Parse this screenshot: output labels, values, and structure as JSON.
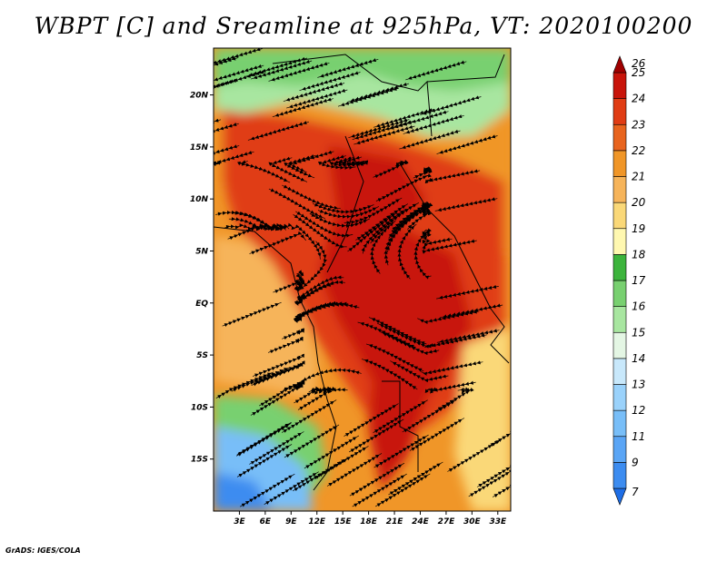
{
  "title": "WBPT [C] and Sreamline at 925hPa, VT: 2020100200",
  "credit": "GrADS: IGES/COLA",
  "lat_ticks": [
    {
      "label": "20N",
      "value": 20
    },
    {
      "label": "15N",
      "value": 15
    },
    {
      "label": "10N",
      "value": 10
    },
    {
      "label": "5N",
      "value": 5
    },
    {
      "label": "EQ",
      "value": 0
    },
    {
      "label": "5S",
      "value": -5
    },
    {
      "label": "10S",
      "value": -10
    },
    {
      "label": "15S",
      "value": -15
    }
  ],
  "lon_ticks": [
    {
      "label": "3E",
      "value": 3
    },
    {
      "label": "6E",
      "value": 6
    },
    {
      "label": "9E",
      "value": 9
    },
    {
      "label": "12E",
      "value": 12
    },
    {
      "label": "15E",
      "value": 15
    },
    {
      "label": "18E",
      "value": 18
    },
    {
      "label": "21E",
      "value": 21
    },
    {
      "label": "24E",
      "value": 24
    },
    {
      "label": "27E",
      "value": 27
    },
    {
      "label": "30E",
      "value": 30
    },
    {
      "label": "33E",
      "value": 33
    }
  ],
  "domain": {
    "lon_min": 0,
    "lon_max": 34.5,
    "lat_min": -20,
    "lat_max": 24.5
  },
  "colorbar": {
    "levels": [
      "7",
      "9",
      "11",
      "12",
      "13",
      "14",
      "15",
      "16",
      "17",
      "18",
      "19",
      "20",
      "21",
      "22",
      "23",
      "24",
      "25",
      "26"
    ],
    "colors": [
      "#1e6ee6",
      "#3c8cf0",
      "#5aa5f5",
      "#78bef8",
      "#9ad2fb",
      "#c8e8fb",
      "#e4f6e4",
      "#a8e6a0",
      "#78d070",
      "#3cb43c",
      "#fff8b0",
      "#fad878",
      "#f6b45a",
      "#f09628",
      "#e8641e",
      "#e03c14",
      "#c8140a",
      "#a00000"
    ]
  },
  "regions": [
    {
      "name": "north-green",
      "color": "#78d070"
    },
    {
      "name": "north-light-green",
      "color": "#a8e6a0"
    },
    {
      "name": "sahel-orange",
      "color": "#f09628"
    },
    {
      "name": "central-red",
      "color": "#e03c14"
    },
    {
      "name": "congo-dark-red",
      "color": "#c8140a"
    },
    {
      "name": "atlantic-orange",
      "color": "#f6b45a"
    },
    {
      "name": "southwest-green",
      "color": "#78d070"
    },
    {
      "name": "southwest-blue",
      "color": "#78bef8"
    },
    {
      "name": "southwest-deep-blue",
      "color": "#3c8cf0"
    },
    {
      "name": "east-yellow",
      "color": "#fad878"
    }
  ]
}
